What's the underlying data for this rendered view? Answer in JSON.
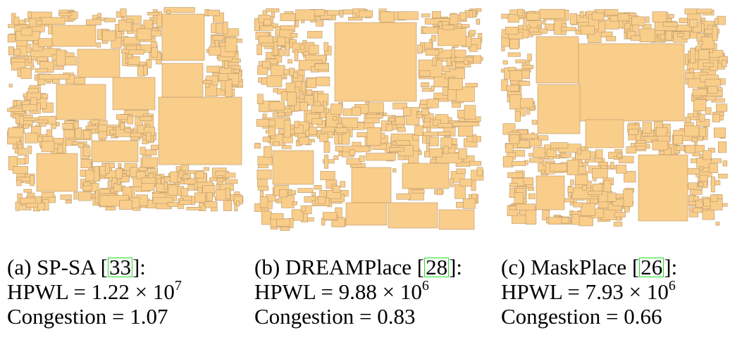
{
  "figure": {
    "colors": {
      "block_fill": "#F9CD8A",
      "block_stroke": "#B8976A",
      "cite_box": "#1FE01F"
    },
    "panels": [
      {
        "label": "(a)",
        "method": "SP-SA",
        "cite": "33",
        "hpwl_label": "HPWL = ",
        "hpwl_mantissa": "1.22",
        "hpwl_times": " × 10",
        "hpwl_exp": "7",
        "congestion_label": "Congestion = ",
        "congestion": "1.07"
      },
      {
        "label": "(b)",
        "method": "DREAMPlace",
        "cite": "28",
        "hpwl_label": "HPWL = ",
        "hpwl_mantissa": "9.88",
        "hpwl_times": " × 10",
        "hpwl_exp": "6",
        "congestion_label": "Congestion = ",
        "congestion": "0.83"
      },
      {
        "label": "(c)",
        "method": "MaskPlace",
        "cite": "26",
        "hpwl_label": "HPWL = ",
        "hpwl_mantissa": "7.93",
        "hpwl_times": " × 10",
        "hpwl_exp": "6",
        "congestion_label": "Congestion = ",
        "congestion": "0.66"
      }
    ]
  }
}
